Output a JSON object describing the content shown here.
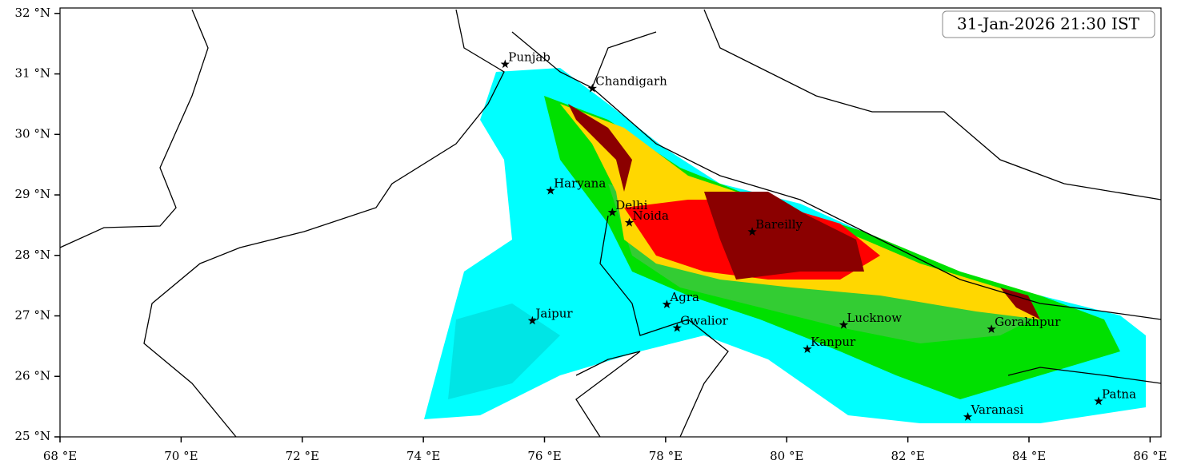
{
  "map": {
    "title": "31-Jan-2026 21:30 IST",
    "xlim": [
      68,
      86.18
    ],
    "ylim": [
      25,
      32.09
    ],
    "xticks": [
      {
        "value": 68,
        "label": "68 °E"
      },
      {
        "value": 70,
        "label": "70 °E"
      },
      {
        "value": 72,
        "label": "72 °E"
      },
      {
        "value": 74,
        "label": "74 °E"
      },
      {
        "value": 76,
        "label": "76 °E"
      },
      {
        "value": 78,
        "label": "78 °E"
      },
      {
        "value": 80,
        "label": "80 °E"
      },
      {
        "value": 82,
        "label": "82 °E"
      },
      {
        "value": 84,
        "label": "84 °E"
      },
      {
        "value": 86,
        "label": "86 °E"
      }
    ],
    "yticks": [
      {
        "value": 25,
        "label": "25 °N"
      },
      {
        "value": 26,
        "label": "26 °N"
      },
      {
        "value": 27,
        "label": "27 °N"
      },
      {
        "value": 28,
        "label": "28 °N"
      },
      {
        "value": 29,
        "label": "29 °N"
      },
      {
        "value": 30,
        "label": "30 °N"
      },
      {
        "value": 31,
        "label": "31 °N"
      },
      {
        "value": 32,
        "label": "32 °N"
      }
    ],
    "cities": [
      {
        "name": "Punjab",
        "lon": 75.35,
        "lat": 31.16
      },
      {
        "name": "Chandigarh",
        "lon": 76.79,
        "lat": 30.76
      },
      {
        "name": "Haryana",
        "lon": 76.1,
        "lat": 29.07
      },
      {
        "name": "Delhi",
        "lon": 77.12,
        "lat": 28.71
      },
      {
        "name": "Noida",
        "lon": 77.4,
        "lat": 28.54
      },
      {
        "name": "Bareilly",
        "lon": 79.43,
        "lat": 28.39
      },
      {
        "name": "Agra",
        "lon": 78.02,
        "lat": 27.19
      },
      {
        "name": "Jaipur",
        "lon": 75.8,
        "lat": 26.92
      },
      {
        "name": "Gwalior",
        "lon": 78.19,
        "lat": 26.8
      },
      {
        "name": "Lucknow",
        "lon": 80.94,
        "lat": 26.85
      },
      {
        "name": "Kanpur",
        "lon": 80.34,
        "lat": 26.45
      },
      {
        "name": "Gorakhpur",
        "lon": 83.38,
        "lat": 26.78
      },
      {
        "name": "Varanasi",
        "lon": 82.99,
        "lat": 25.33
      },
      {
        "name": "Patna",
        "lon": 85.15,
        "lat": 25.59
      }
    ]
  }
}
